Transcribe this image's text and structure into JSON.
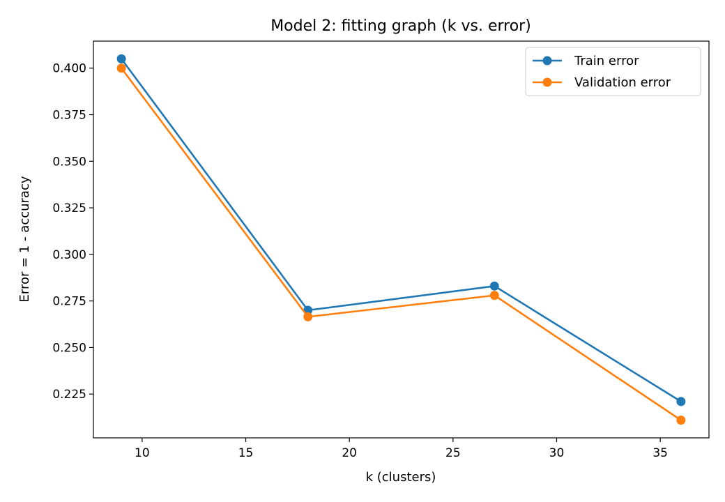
{
  "chart_data": {
    "type": "line",
    "title": "Model 2: fitting graph (k vs. error)",
    "xlabel": "k (clusters)",
    "ylabel": "Error = 1 - accuracy",
    "x": [
      9,
      18,
      27,
      36
    ],
    "xlim": [
      7.65,
      37.35
    ],
    "ylim": [
      0.2015,
      0.4145
    ],
    "xticks": [
      10,
      15,
      20,
      25,
      30,
      35
    ],
    "yticks": [
      0.225,
      0.25,
      0.275,
      0.3,
      0.325,
      0.35,
      0.375,
      0.4
    ],
    "grid": false,
    "legend_position": "top-right",
    "series": [
      {
        "name": "Train error",
        "color": "#1f77b4",
        "values": [
          0.405,
          0.27,
          0.283,
          0.221
        ]
      },
      {
        "name": "Validation error",
        "color": "#ff7f0e",
        "values": [
          0.4,
          0.2665,
          0.278,
          0.211
        ]
      }
    ]
  }
}
